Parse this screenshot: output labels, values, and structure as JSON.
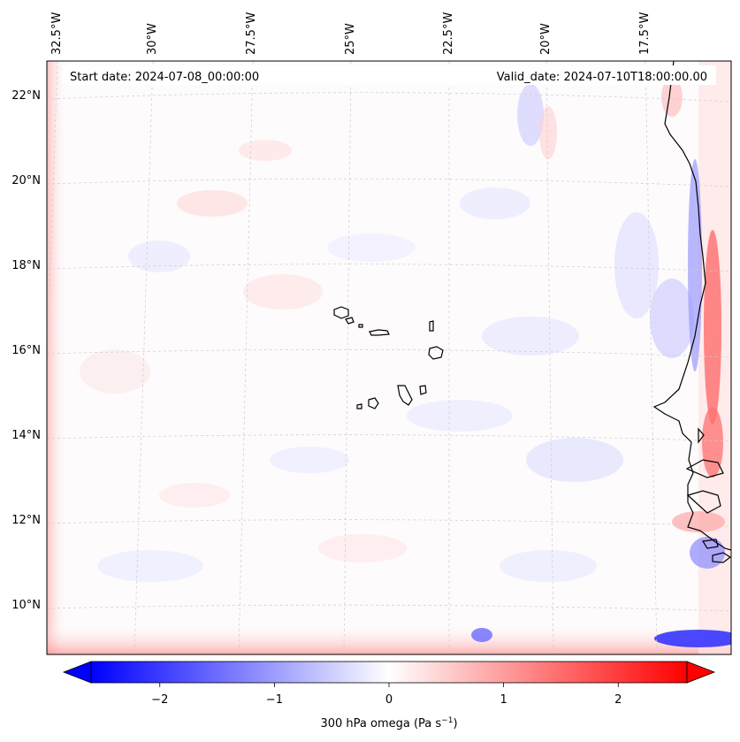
{
  "header": {
    "start_date": "Start date: 2024-07-08_00:00:00",
    "valid_date": "Valid_date: 2024-07-10T18:00:00.00"
  },
  "map": {
    "projection": "lambert-conformal",
    "lon_labels": [
      "32.5°W",
      "30°W",
      "27.5°W",
      "25°W",
      "22.5°W",
      "20°W",
      "17.5°W"
    ],
    "lat_labels": [
      "22°N",
      "20°N",
      "18°N",
      "16°N",
      "14°N",
      "12°N",
      "10°N"
    ],
    "gridlines": true,
    "field": "300 hPa omega",
    "features": [
      "Cape Verde islands",
      "West African coastline"
    ]
  },
  "colorbar": {
    "label": "300 hPa omega (Pa s",
    "label_sup": "−1",
    "label_close": ")",
    "ticks": [
      "−2",
      "−1",
      "0",
      "1",
      "2"
    ],
    "tick_values": [
      -2,
      -1,
      0,
      1,
      2
    ],
    "range": [
      -2.6,
      2.6
    ],
    "extend": "both",
    "colors": {
      "low": "#0000ff",
      "mid": "#ffffff",
      "high": "#ff0000"
    }
  }
}
